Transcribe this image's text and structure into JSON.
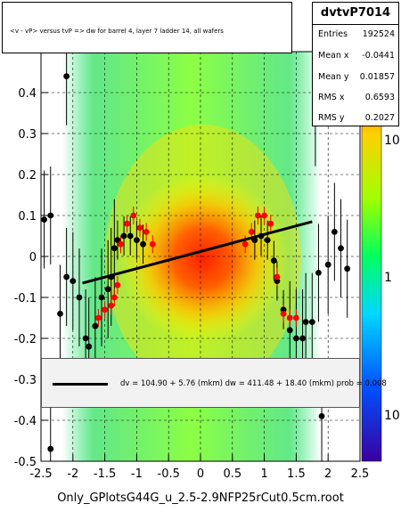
{
  "chart_data": {
    "type": "scatter",
    "title": "<v - vP>       versus  tvP =>  dw for barrel 4, layer 7 ladder 14, all wafers",
    "xlim": [
      -2.5,
      2.5
    ],
    "ylim": [
      -0.5,
      0.5
    ],
    "x_ticks": [
      "-2.5",
      "-2",
      "-1.5",
      "-1",
      "-0.5",
      "0",
      "0.5",
      "1",
      "1.5",
      "2",
      "2.5"
    ],
    "y_ticks": [
      "-0.5",
      "-0.4",
      "-0.3",
      "-0.2",
      "-0.1",
      "0",
      "0.1",
      "0.2",
      "0.3",
      "0.4"
    ],
    "z_ticks": [
      "10",
      "1",
      "10"
    ],
    "grid": true,
    "colorbar": "log",
    "series": [
      {
        "marker": "black",
        "points": [
          [
            -2.55,
            -0.14
          ],
          [
            -2.45,
            0.09
          ],
          [
            -2.35,
            0.1
          ],
          [
            -2.2,
            -0.14
          ],
          [
            -2.1,
            -0.05
          ],
          [
            -2.0,
            -0.06
          ],
          [
            -1.9,
            -0.1
          ],
          [
            -1.8,
            -0.2
          ],
          [
            -1.75,
            -0.22
          ],
          [
            -1.65,
            -0.17
          ],
          [
            -1.55,
            -0.1
          ],
          [
            -1.45,
            -0.08
          ],
          [
            -1.4,
            -0.05
          ],
          [
            -1.35,
            0.02
          ],
          [
            -1.3,
            0.04
          ],
          [
            -1.2,
            0.05
          ],
          [
            -1.1,
            0.05
          ],
          [
            -1.0,
            0.04
          ],
          [
            -0.9,
            0.03
          ],
          [
            0.85,
            0.04
          ],
          [
            0.95,
            0.05
          ],
          [
            1.05,
            0.04
          ],
          [
            1.15,
            -0.01
          ],
          [
            1.2,
            -0.06
          ],
          [
            1.3,
            -0.13
          ],
          [
            1.4,
            -0.18
          ],
          [
            1.5,
            -0.2
          ],
          [
            1.6,
            -0.2
          ],
          [
            1.65,
            -0.16
          ],
          [
            1.75,
            -0.16
          ],
          [
            1.85,
            -0.04
          ],
          [
            2.1,
            0.06
          ],
          [
            2.2,
            0.02
          ],
          [
            2.3,
            -0.03
          ],
          [
            2.0,
            -0.02
          ],
          [
            -2.1,
            0.44
          ],
          [
            -2.35,
            -0.47
          ],
          [
            1.9,
            -0.39
          ],
          [
            1.8,
            0.34
          ]
        ]
      },
      {
        "marker": "red",
        "points": [
          [
            -1.6,
            -0.15
          ],
          [
            -1.5,
            -0.13
          ],
          [
            -1.4,
            -0.12
          ],
          [
            -1.35,
            -0.1
          ],
          [
            -1.3,
            -0.07
          ],
          [
            -1.25,
            0.03
          ],
          [
            -1.15,
            0.08
          ],
          [
            -1.05,
            0.1
          ],
          [
            -0.95,
            0.07
          ],
          [
            -0.85,
            0.06
          ],
          [
            -0.75,
            0.03
          ],
          [
            0.7,
            0.03
          ],
          [
            0.8,
            0.06
          ],
          [
            0.9,
            0.1
          ],
          [
            1.0,
            0.1
          ],
          [
            1.1,
            0.08
          ],
          [
            1.2,
            -0.05
          ],
          [
            1.3,
            -0.14
          ],
          [
            1.4,
            -0.15
          ],
          [
            1.5,
            -0.15
          ]
        ]
      }
    ],
    "fit_line": {
      "x": [
        -1.85,
        1.75
      ],
      "y": [
        -0.065,
        0.085
      ]
    }
  },
  "stats": {
    "name": "dvtvP7014",
    "rows": [
      {
        "label": "Entries",
        "value": "192524"
      },
      {
        "label": "Mean x",
        "value": "-0.0441"
      },
      {
        "label": "Mean y",
        "value": "0.01857"
      },
      {
        "label": "RMS x",
        "value": "0.6593"
      },
      {
        "label": "RMS y",
        "value": "0.2027"
      }
    ]
  },
  "fit_text": "dv =  104.90 +  5.76 (mkm) dw =  411.48 + 18.40 (mkm) prob = 0.008",
  "footer": "Only_GPlotsG44G_u_2.5-2.9NFP25rCut0.5cm.root"
}
